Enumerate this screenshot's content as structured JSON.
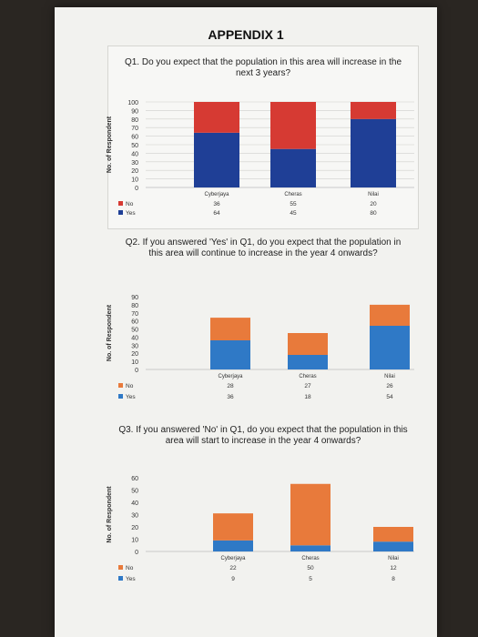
{
  "page": {
    "heading": "APPENDIX 1"
  },
  "colors": {
    "q1_no": "#d63a33",
    "q1_yes": "#1f3f96",
    "q_no": "#e87a3b",
    "q_yes": "#2f79c6"
  },
  "chart_data": [
    {
      "type": "bar",
      "stacked": true,
      "title": "Q1. Do you expect that the population in this area will increase in the next 3 years?",
      "ylabel": "No. of Respondent",
      "xlabel": "",
      "ylim": [
        0,
        100
      ],
      "yticks": [
        0,
        10,
        20,
        30,
        40,
        50,
        60,
        70,
        80,
        90,
        100
      ],
      "grid": true,
      "legend": "table-below",
      "categories": [
        "Cyberjaya",
        "Cheras",
        "Nilai"
      ],
      "series": [
        {
          "name": "No",
          "values": [
            36,
            55,
            20
          ]
        },
        {
          "name": "Yes",
          "values": [
            64,
            45,
            80
          ]
        }
      ]
    },
    {
      "type": "bar",
      "stacked": true,
      "title": "Q2. If you answered 'Yes' in Q1, do you expect that the population in this area will continue to increase in the year 4 onwards?",
      "ylabel": "No. of Respondent",
      "xlabel": "",
      "ylim": [
        0,
        90
      ],
      "yticks": [
        0,
        10,
        20,
        30,
        40,
        50,
        60,
        70,
        80,
        90
      ],
      "grid": false,
      "legend": "table-below",
      "categories": [
        "Cyberjaya",
        "Cheras",
        "Nilai"
      ],
      "series": [
        {
          "name": "No",
          "values": [
            28,
            27,
            26
          ]
        },
        {
          "name": "Yes",
          "values": [
            36,
            18,
            54
          ]
        }
      ]
    },
    {
      "type": "bar",
      "stacked": true,
      "title": "Q3. If you answered 'No' in Q1, do you expect that the population in this area will start to increase in the year 4 onwards?",
      "ylabel": "No. of Respondent",
      "xlabel": "",
      "ylim": [
        0,
        60
      ],
      "yticks": [
        0,
        10,
        20,
        30,
        40,
        50,
        60
      ],
      "grid": false,
      "legend": "table-below",
      "categories": [
        "Cyberjaya",
        "Cheras",
        "Nilai"
      ],
      "series": [
        {
          "name": "No",
          "values": [
            22,
            50,
            12
          ]
        },
        {
          "name": "Yes",
          "values": [
            9,
            5,
            8
          ]
        }
      ]
    }
  ]
}
